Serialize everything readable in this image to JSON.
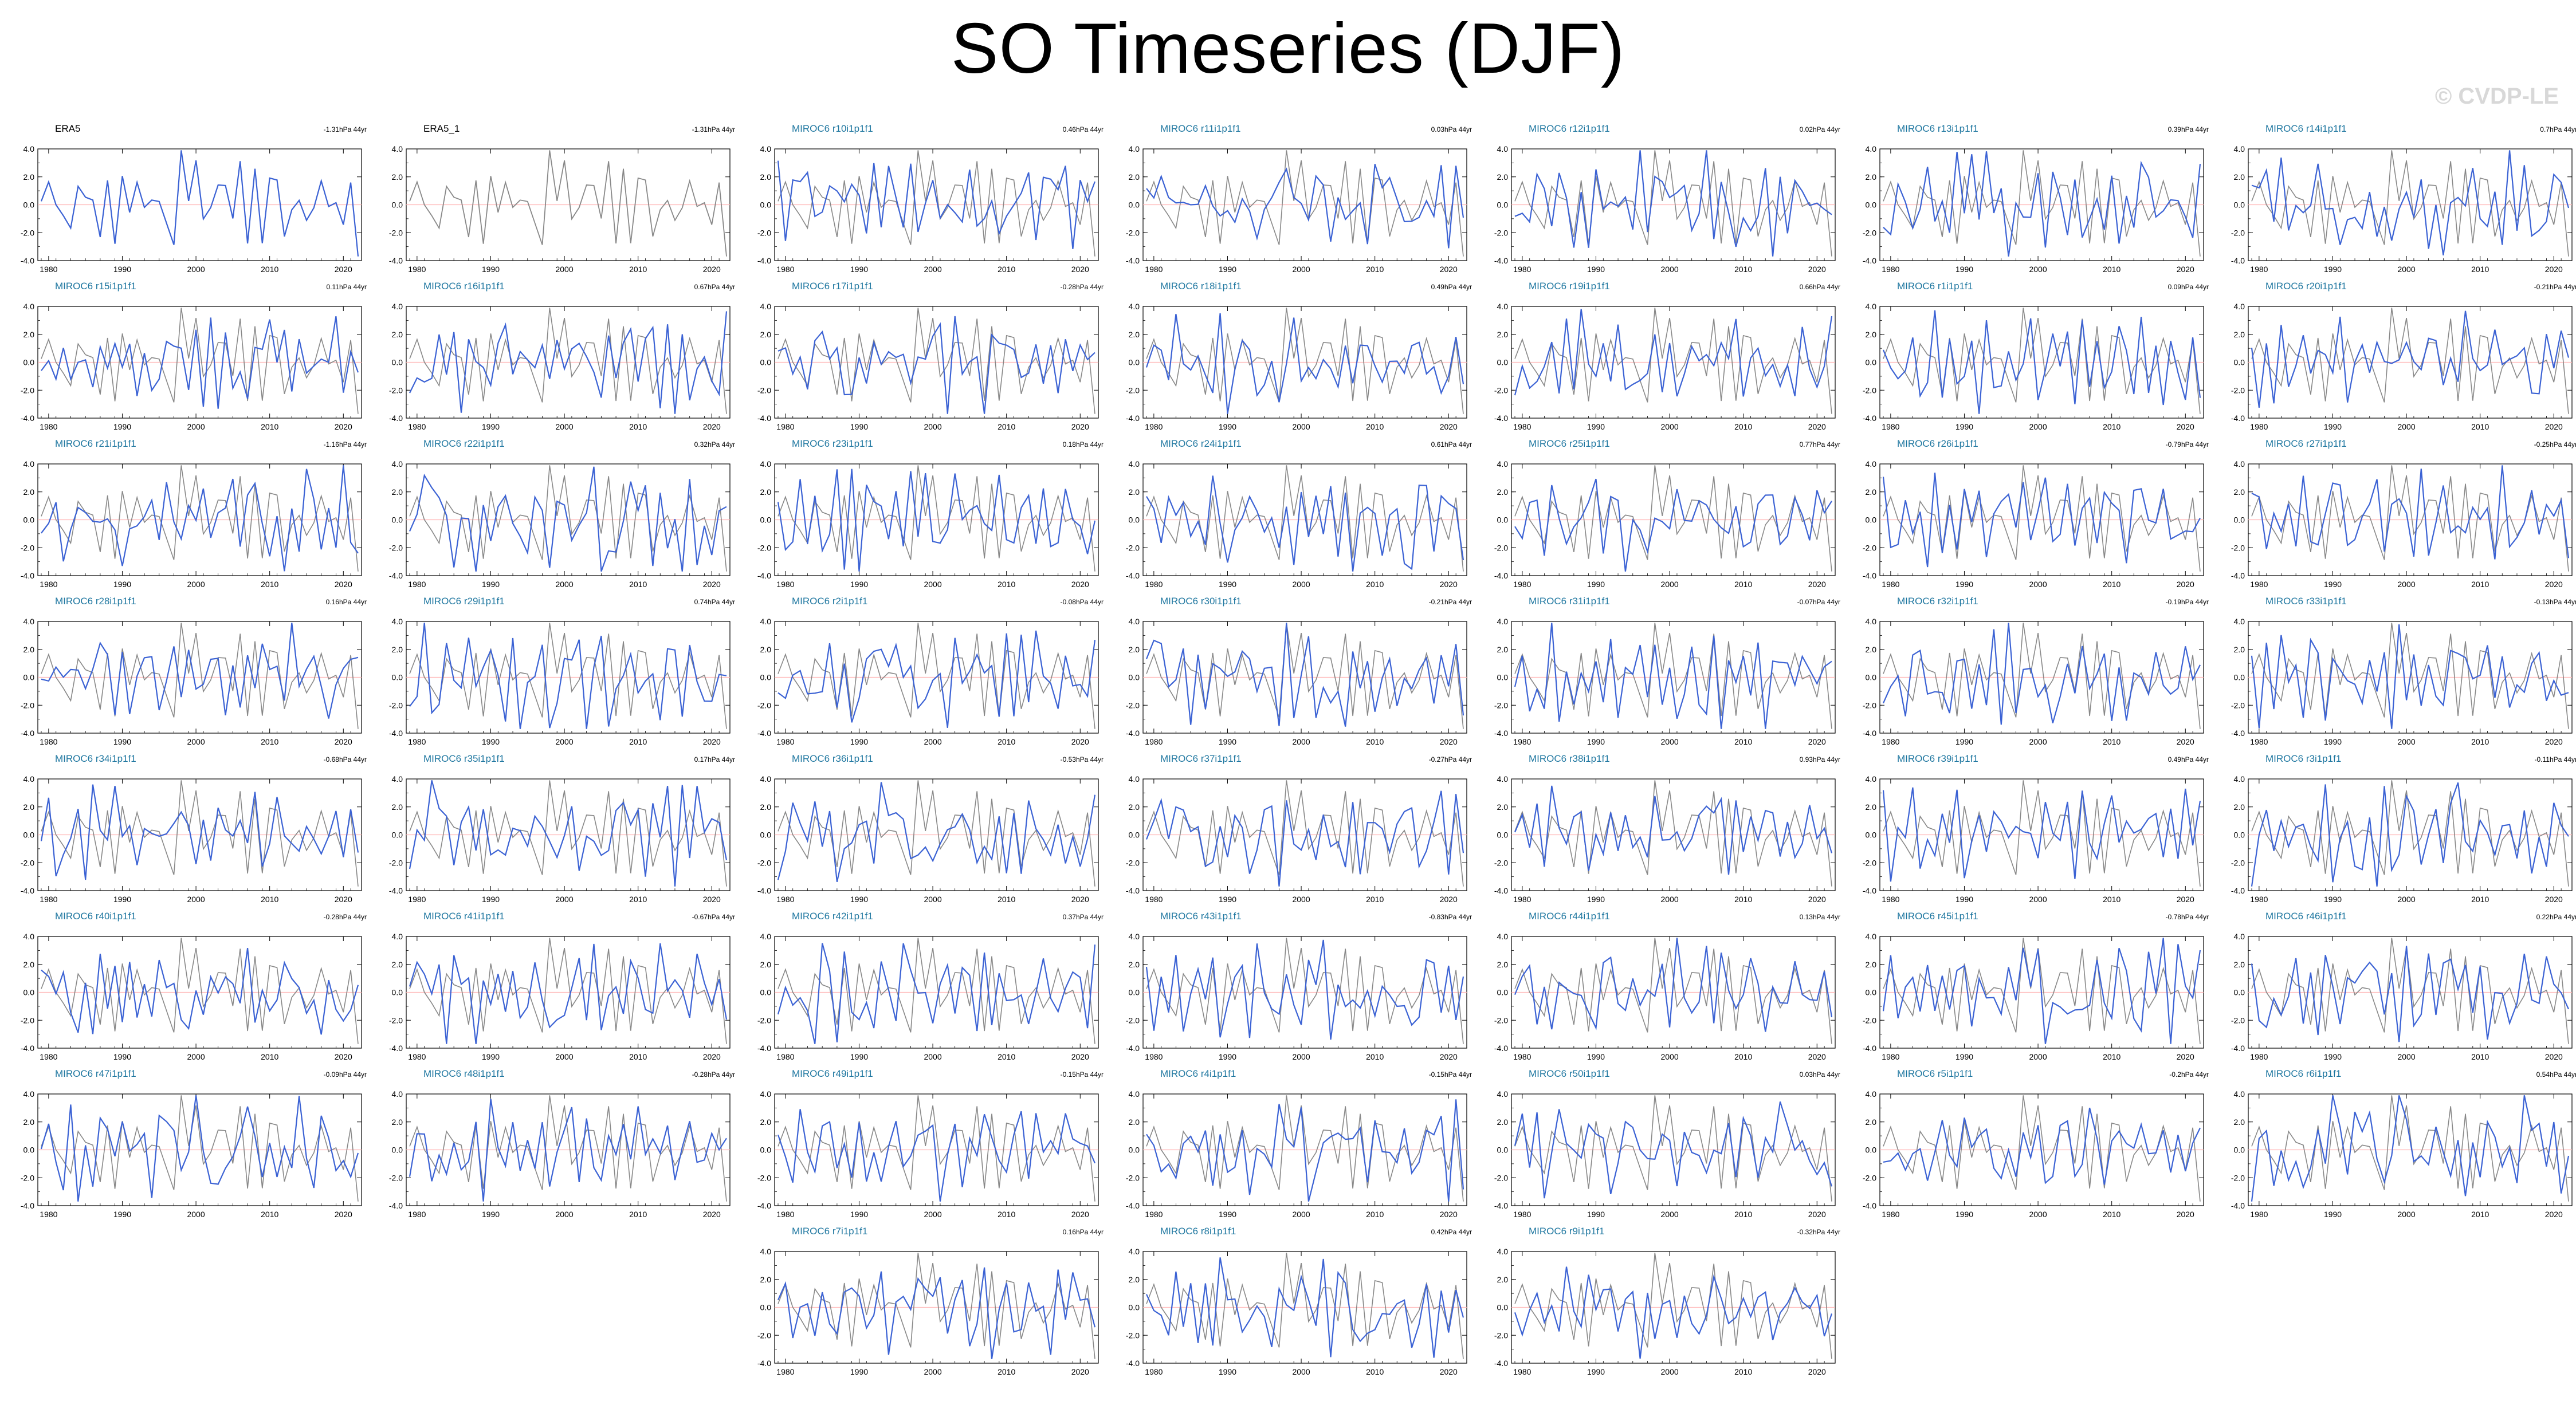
{
  "title": "SO Timeseries (DJF)",
  "watermark": "© CVDP-LE",
  "colors": {
    "model": "#3b62d4",
    "obs": "#888888",
    "zero": "#ffb3b3",
    "title_model": "#1f77a0",
    "title_obs": "#000000"
  },
  "chart_data": {
    "type": "line",
    "x_range": [
      1979,
      2022
    ],
    "ylim": [
      -4,
      4
    ],
    "yticks": [
      "4.0",
      "2.0",
      "0.0",
      "-2.0",
      "-4.0"
    ],
    "xticks": [
      "1980",
      "1990",
      "2000",
      "2010",
      "2020"
    ],
    "obs_series_name": "ERA5",
    "panels": [
      {
        "title": "ERA5",
        "trend": "-1.31hPa 44yr",
        "kind": "obs",
        "seed": 1
      },
      {
        "title": "ERA5_1",
        "trend": "-1.31hPa 44yr",
        "kind": "obsgray",
        "seed": 1
      },
      {
        "title": "MIROC6 r10i1p1f1",
        "trend": "0.46hPa 44yr",
        "kind": "model",
        "seed": 10
      },
      {
        "title": "MIROC6 r11i1p1f1",
        "trend": "0.03hPa 44yr",
        "kind": "model",
        "seed": 11
      },
      {
        "title": "MIROC6 r12i1p1f1",
        "trend": "0.02hPa 44yr",
        "kind": "model",
        "seed": 12
      },
      {
        "title": "MIROC6 r13i1p1f1",
        "trend": "0.39hPa 44yr",
        "kind": "model",
        "seed": 13
      },
      {
        "title": "MIROC6 r14i1p1f1",
        "trend": "0.7hPa 44yr",
        "kind": "model",
        "seed": 14
      },
      {
        "title": "MIROC6 r15i1p1f1",
        "trend": "0.11hPa 44yr",
        "kind": "model",
        "seed": 15
      },
      {
        "title": "MIROC6 r16i1p1f1",
        "trend": "0.67hPa 44yr",
        "kind": "model",
        "seed": 16
      },
      {
        "title": "MIROC6 r17i1p1f1",
        "trend": "-0.28hPa 44yr",
        "kind": "model",
        "seed": 17
      },
      {
        "title": "MIROC6 r18i1p1f1",
        "trend": "0.49hPa 44yr",
        "kind": "model",
        "seed": 18
      },
      {
        "title": "MIROC6 r19i1p1f1",
        "trend": "0.66hPa 44yr",
        "kind": "model",
        "seed": 19
      },
      {
        "title": "MIROC6 r1i1p1f1",
        "trend": "0.09hPa 44yr",
        "kind": "model",
        "seed": 1
      },
      {
        "title": "MIROC6 r20i1p1f1",
        "trend": "-0.21hPa 44yr",
        "kind": "model",
        "seed": 20
      },
      {
        "title": "MIROC6 r21i1p1f1",
        "trend": "-1.16hPa 44yr",
        "kind": "model",
        "seed": 21
      },
      {
        "title": "MIROC6 r22i1p1f1",
        "trend": "0.32hPa 44yr",
        "kind": "model",
        "seed": 22
      },
      {
        "title": "MIROC6 r23i1p1f1",
        "trend": "0.18hPa 44yr",
        "kind": "model",
        "seed": 23
      },
      {
        "title": "MIROC6 r24i1p1f1",
        "trend": "0.61hPa 44yr",
        "kind": "model",
        "seed": 24
      },
      {
        "title": "MIROC6 r25i1p1f1",
        "trend": "0.77hPa 44yr",
        "kind": "model",
        "seed": 25
      },
      {
        "title": "MIROC6 r26i1p1f1",
        "trend": "-0.79hPa 44yr",
        "kind": "model",
        "seed": 26
      },
      {
        "title": "MIROC6 r27i1p1f1",
        "trend": "-0.25hPa 44yr",
        "kind": "model",
        "seed": 27
      },
      {
        "title": "MIROC6 r28i1p1f1",
        "trend": "0.16hPa 44yr",
        "kind": "model",
        "seed": 28
      },
      {
        "title": "MIROC6 r29i1p1f1",
        "trend": "0.74hPa 44yr",
        "kind": "model",
        "seed": 29
      },
      {
        "title": "MIROC6 r2i1p1f1",
        "trend": "-0.08hPa 44yr",
        "kind": "model",
        "seed": 2
      },
      {
        "title": "MIROC6 r30i1p1f1",
        "trend": "-0.21hPa 44yr",
        "kind": "model",
        "seed": 30
      },
      {
        "title": "MIROC6 r31i1p1f1",
        "trend": "-0.07hPa 44yr",
        "kind": "model",
        "seed": 31
      },
      {
        "title": "MIROC6 r32i1p1f1",
        "trend": "-0.19hPa 44yr",
        "kind": "model",
        "seed": 32
      },
      {
        "title": "MIROC6 r33i1p1f1",
        "trend": "-0.13hPa 44yr",
        "kind": "model",
        "seed": 33
      },
      {
        "title": "MIROC6 r34i1p1f1",
        "trend": "-0.68hPa 44yr",
        "kind": "model",
        "seed": 34
      },
      {
        "title": "MIROC6 r35i1p1f1",
        "trend": "0.17hPa 44yr",
        "kind": "model",
        "seed": 35
      },
      {
        "title": "MIROC6 r36i1p1f1",
        "trend": "-0.53hPa 44yr",
        "kind": "model",
        "seed": 36
      },
      {
        "title": "MIROC6 r37i1p1f1",
        "trend": "-0.27hPa 44yr",
        "kind": "model",
        "seed": 37
      },
      {
        "title": "MIROC6 r38i1p1f1",
        "trend": "0.93hPa 44yr",
        "kind": "model",
        "seed": 38
      },
      {
        "title": "MIROC6 r39i1p1f1",
        "trend": "0.49hPa 44yr",
        "kind": "model",
        "seed": 39
      },
      {
        "title": "MIROC6 r3i1p1f1",
        "trend": "-0.11hPa 44yr",
        "kind": "model",
        "seed": 3
      },
      {
        "title": "MIROC6 r40i1p1f1",
        "trend": "-0.28hPa 44yr",
        "kind": "model",
        "seed": 40
      },
      {
        "title": "MIROC6 r41i1p1f1",
        "trend": "-0.67hPa 44yr",
        "kind": "model",
        "seed": 41
      },
      {
        "title": "MIROC6 r42i1p1f1",
        "trend": "0.37hPa 44yr",
        "kind": "model",
        "seed": 42
      },
      {
        "title": "MIROC6 r43i1p1f1",
        "trend": "-0.83hPa 44yr",
        "kind": "model",
        "seed": 43
      },
      {
        "title": "MIROC6 r44i1p1f1",
        "trend": "0.13hPa 44yr",
        "kind": "model",
        "seed": 44
      },
      {
        "title": "MIROC6 r45i1p1f1",
        "trend": "-0.78hPa 44yr",
        "kind": "model",
        "seed": 45
      },
      {
        "title": "MIROC6 r46i1p1f1",
        "trend": "0.22hPa 44yr",
        "kind": "model",
        "seed": 46
      },
      {
        "title": "MIROC6 r47i1p1f1",
        "trend": "-0.09hPa 44yr",
        "kind": "model",
        "seed": 47
      },
      {
        "title": "MIROC6 r48i1p1f1",
        "trend": "-0.28hPa 44yr",
        "kind": "model",
        "seed": 48
      },
      {
        "title": "MIROC6 r49i1p1f1",
        "trend": "-0.15hPa 44yr",
        "kind": "model",
        "seed": 49
      },
      {
        "title": "MIROC6 r4i1p1f1",
        "trend": "-0.15hPa 44yr",
        "kind": "model",
        "seed": 4
      },
      {
        "title": "MIROC6 r50i1p1f1",
        "trend": "0.03hPa 44yr",
        "kind": "model",
        "seed": 50
      },
      {
        "title": "MIROC6 r5i1p1f1",
        "trend": "-0.2hPa 44yr",
        "kind": "model",
        "seed": 5
      },
      {
        "title": "MIROC6 r6i1p1f1",
        "trend": "0.54hPa 44yr",
        "kind": "model",
        "seed": 6
      },
      {
        "title": "MIROC6 r7i1p1f1",
        "trend": "0.16hPa 44yr",
        "kind": "model",
        "seed": 7
      },
      {
        "title": "MIROC6 r8i1p1f1",
        "trend": "0.42hPa 44yr",
        "kind": "model",
        "seed": 8
      },
      {
        "title": "MIROC6 r9i1p1f1",
        "trend": "-0.32hPa 44yr",
        "kind": "model",
        "seed": 9
      }
    ]
  }
}
